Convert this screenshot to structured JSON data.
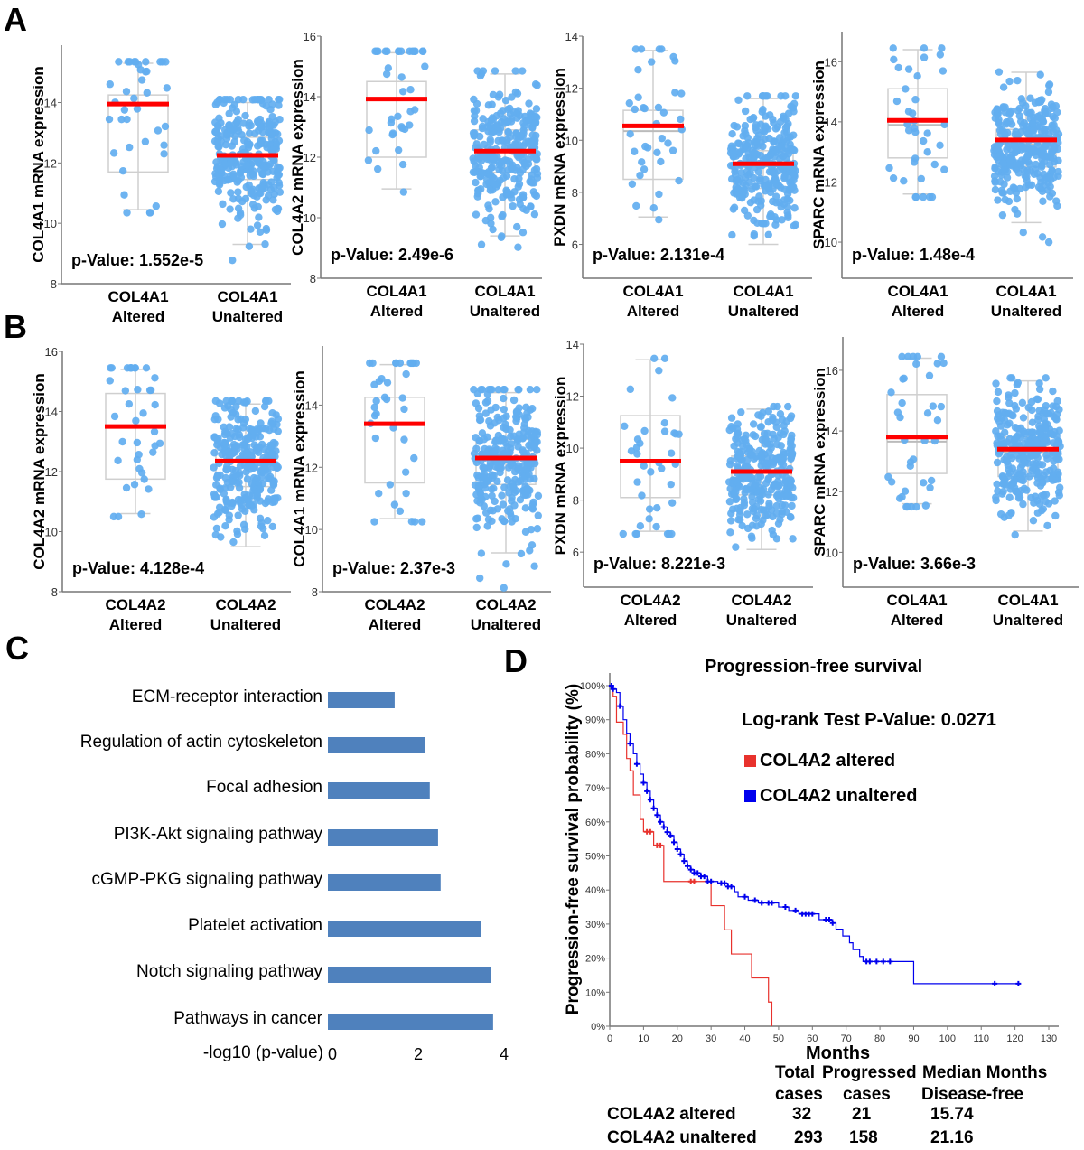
{
  "panels": {
    "a": "A",
    "b": "B",
    "c": "C",
    "d": "D"
  },
  "colors": {
    "points": "#62aef0",
    "mean_line": "#ff0000",
    "box": "#cfcfcf",
    "bar": "#4f81bd",
    "altered": "#e8322d",
    "unaltered": "#0000ee"
  },
  "chart_data": [
    {
      "type": "box",
      "panel": "A",
      "ylabel": "COL4A1 mRNA expression",
      "ylim": [
        8,
        15.9
      ],
      "yticks": [
        8,
        10,
        12,
        14
      ],
      "p_value": "p-Value: 1.552e-5",
      "categories": [
        [
          "COL4A1",
          "Altered"
        ],
        [
          "COL4A1",
          "Unaltered"
        ]
      ],
      "groups": [
        {
          "whisker": [
            10.45,
            15.3
          ],
          "q1": 11.7,
          "median": 13.95,
          "q3": 14.25,
          "mean": 13.95
        },
        {
          "whisker": [
            9.3,
            14.0
          ],
          "q1": 11.45,
          "median": 12.2,
          "q3": 12.85,
          "mean": 12.25
        }
      ]
    },
    {
      "type": "box",
      "panel": "A",
      "ylabel": "COL4A2 mRNA expression",
      "ylim": [
        8,
        16
      ],
      "yticks": [
        8,
        10,
        12,
        14,
        16
      ],
      "p_value": "p-Value: 2.49e-6",
      "categories": [
        [
          "COL4A1",
          "Altered"
        ],
        [
          "COL4A1",
          "Unaltered"
        ]
      ],
      "groups": [
        {
          "whisker": [
            10.95,
            15.45
          ],
          "q1": 12.0,
          "median": 13.9,
          "q3": 14.5,
          "mean": 13.92
        },
        {
          "whisker": [
            9.4,
            14.75
          ],
          "q1": 11.5,
          "median": 12.2,
          "q3": 12.9,
          "mean": 12.2
        }
      ]
    },
    {
      "type": "box",
      "panel": "A",
      "ylabel": "PXDN mRNA expression",
      "ylim": [
        4.7,
        14
      ],
      "yticks": [
        6,
        8,
        10,
        12,
        14
      ],
      "p_value": "p-Value: 2.131e-4",
      "categories": [
        [
          "COL4A1",
          "Altered"
        ],
        [
          "COL4A1",
          "Unaltered"
        ]
      ],
      "groups": [
        {
          "whisker": [
            7.05,
            13.45
          ],
          "q1": 8.5,
          "median": 10.35,
          "q3": 11.15,
          "mean": 10.55
        },
        {
          "whisker": [
            6.0,
            11.6
          ],
          "q1": 8.15,
          "median": 9.0,
          "q3": 9.6,
          "mean": 9.1
        }
      ]
    },
    {
      "type": "box",
      "panel": "A",
      "ylabel": "SPARC mRNA expression",
      "ylim": [
        8.8,
        17
      ],
      "yticks": [
        10,
        12,
        14,
        16
      ],
      "p_value": "p-Value: 1.48e-4",
      "categories": [
        [
          "COL4A1",
          "Altered"
        ],
        [
          "COL4A1",
          "Unaltered"
        ]
      ],
      "groups": [
        {
          "whisker": [
            11.6,
            16.4
          ],
          "q1": 12.8,
          "median": 13.9,
          "q3": 15.1,
          "mean": 14.05
        },
        {
          "whisker": [
            10.65,
            15.65
          ],
          "q1": 12.5,
          "median": 13.25,
          "q3": 13.75,
          "mean": 13.4
        }
      ]
    },
    {
      "type": "box",
      "panel": "B",
      "ylabel": "COL4A2 mRNA expression",
      "ylim": [
        8,
        16
      ],
      "yticks": [
        8,
        10,
        12,
        14,
        16
      ],
      "p_value": "p-Value: 4.128e-4",
      "categories": [
        [
          "COL4A2",
          "Altered"
        ],
        [
          "COL4A2",
          "Unaltered"
        ]
      ],
      "groups": [
        {
          "whisker": [
            10.6,
            15.4
          ],
          "q1": 11.75,
          "median": 13.5,
          "q3": 14.6,
          "mean": 13.5
        },
        {
          "whisker": [
            9.5,
            14.25
          ],
          "q1": 11.5,
          "median": 12.3,
          "q3": 12.9,
          "mean": 12.35
        }
      ]
    },
    {
      "type": "box",
      "panel": "B",
      "ylabel": "COL4A1 mRNA expression",
      "ylim": [
        8,
        15.9
      ],
      "yticks": [
        8,
        10,
        12,
        14
      ],
      "p_value": "p-Value: 2.37e-3",
      "categories": [
        [
          "COL4A2",
          "Altered"
        ],
        [
          "COL4A2",
          "Unaltered"
        ]
      ],
      "groups": [
        {
          "whisker": [
            10.35,
            15.3
          ],
          "q1": 11.5,
          "median": 13.4,
          "q3": 14.25,
          "mean": 13.4
        },
        {
          "whisker": [
            9.25,
            14.4
          ],
          "q1": 11.45,
          "median": 12.25,
          "q3": 12.9,
          "mean": 12.3
        }
      ]
    },
    {
      "type": "box",
      "panel": "B",
      "ylabel": "PXDN mRNA expression",
      "ylim": [
        4.65,
        14
      ],
      "yticks": [
        6,
        8,
        10,
        12,
        14
      ],
      "p_value": "p-Value: 8.221e-3",
      "categories": [
        [
          "COL4A2",
          "Altered"
        ],
        [
          "COL4A2",
          "Unaltered"
        ]
      ],
      "groups": [
        {
          "whisker": [
            6.8,
            13.4
          ],
          "q1": 8.1,
          "median": 9.5,
          "q3": 11.25,
          "mean": 9.5
        },
        {
          "whisker": [
            6.1,
            11.5
          ],
          "q1": 8.2,
          "median": 9.05,
          "q3": 9.7,
          "mean": 9.1
        }
      ]
    },
    {
      "type": "box",
      "panel": "B",
      "ylabel": "SPARC mRNA expression",
      "ylim": [
        8.85,
        17.1
      ],
      "yticks": [
        10,
        12,
        14,
        16
      ],
      "p_value": "p-Value: 3.66e-3",
      "categories": [
        [
          "COL4A1",
          "Altered"
        ],
        [
          "COL4A1",
          "Unaltered"
        ]
      ],
      "groups": [
        {
          "whisker": [
            11.6,
            16.4
          ],
          "q1": 12.6,
          "median": 13.65,
          "q3": 15.2,
          "mean": 13.8
        },
        {
          "whisker": [
            10.7,
            15.65
          ],
          "q1": 12.5,
          "median": 13.3,
          "q3": 13.8,
          "mean": 13.4
        }
      ]
    },
    {
      "type": "bar",
      "panel": "C",
      "orientation": "horizontal",
      "categories": [
        "ECM-receptor interaction",
        "Regulation of actin cytoskeleton",
        "Focal adhesion",
        "PI3K-Akt signaling pathway",
        "cGMP-PKG signaling pathway",
        "Platelet activation",
        "Notch signaling pathway",
        "Pathways in cancer"
      ],
      "values": [
        1.54,
        2.25,
        2.35,
        2.54,
        2.6,
        3.54,
        3.75,
        3.81
      ],
      "xlabel": "-log10 (p-value)",
      "xticks": [
        0,
        2,
        4
      ],
      "xlim": [
        0,
        4
      ]
    },
    {
      "type": "line",
      "panel": "D",
      "subtype": "kaplan-meier",
      "title": "Progression-free survival",
      "annotation": "Log-rank Test P-Value: 0.0271",
      "xlabel": "Months",
      "ylabel": "Progression-free survival probability (%)",
      "xlim": [
        0,
        130
      ],
      "xticks": [
        0,
        10,
        20,
        30,
        40,
        50,
        60,
        70,
        80,
        90,
        100,
        110,
        120,
        130
      ],
      "ylim": [
        0,
        100
      ],
      "yticks": [
        "0%",
        "10%",
        "20%",
        "30%",
        "40%",
        "50%",
        "60%",
        "70%",
        "80%",
        "90%",
        "100%"
      ],
      "legend_position": "top-right",
      "series": [
        {
          "name": "COL4A2 altered",
          "color": "#e8322d",
          "steps": [
            [
              0,
              100
            ],
            [
              1,
              96.9
            ],
            [
              2,
              89.3
            ],
            [
              4,
              85.7
            ],
            [
              5,
              78.6
            ],
            [
              6,
              75
            ],
            [
              7,
              67.9
            ],
            [
              9,
              60.7
            ],
            [
              10,
              57.1
            ],
            [
              13,
              53.1
            ],
            [
              16,
              42.5
            ],
            [
              30,
              35.4
            ],
            [
              34,
              28.3
            ],
            [
              36,
              21.2
            ],
            [
              42,
              14.2
            ],
            [
              47,
              7.1
            ],
            [
              48,
              0
            ]
          ],
          "censored": [
            11,
            12,
            14,
            15,
            24,
            25
          ]
        },
        {
          "name": "COL4A2 unaltered",
          "color": "#0000ee",
          "steps": [
            [
              0,
              100
            ],
            [
              1,
              99
            ],
            [
              2,
              98
            ],
            [
              3,
              94
            ],
            [
              4,
              90
            ],
            [
              5,
              86
            ],
            [
              6,
              83
            ],
            [
              7,
              80
            ],
            [
              8,
              77
            ],
            [
              9,
              74
            ],
            [
              10,
              71.5
            ],
            [
              11,
              69
            ],
            [
              12,
              66.5
            ],
            [
              13,
              64
            ],
            [
              14,
              62
            ],
            [
              15,
              60
            ],
            [
              16,
              58.5
            ],
            [
              17,
              57
            ],
            [
              18,
              56
            ],
            [
              19,
              54
            ],
            [
              20,
              52
            ],
            [
              21,
              50.5
            ],
            [
              22,
              48.5
            ],
            [
              23,
              47
            ],
            [
              24,
              46
            ],
            [
              25,
              45
            ],
            [
              27,
              44
            ],
            [
              29,
              42.5
            ],
            [
              32,
              42
            ],
            [
              35,
              41
            ],
            [
              37,
              39.5
            ],
            [
              38,
              38
            ],
            [
              41,
              37
            ],
            [
              44,
              36.2
            ],
            [
              50,
              35
            ],
            [
              53,
              34
            ],
            [
              56,
              33
            ],
            [
              62,
              31.3
            ],
            [
              66,
              30.3
            ],
            [
              67,
              28.5
            ],
            [
              69,
              26.5
            ],
            [
              71,
              24.5
            ],
            [
              72,
              22.5
            ],
            [
              74,
              20.5
            ],
            [
              75,
              19
            ],
            [
              90,
              12.5
            ],
            [
              121,
              12.5
            ]
          ],
          "censored": [
            0.5,
            1,
            3,
            6,
            8,
            10,
            11,
            12,
            13,
            14,
            15,
            16,
            17,
            18,
            19,
            20,
            21,
            22,
            23,
            24,
            25,
            26,
            27,
            28,
            29,
            30,
            33,
            34,
            35,
            36,
            40,
            43,
            45,
            47,
            48,
            52,
            55,
            57,
            58,
            59,
            60,
            64,
            65,
            66,
            76,
            77,
            79,
            81,
            83,
            114,
            121
          ]
        }
      ],
      "table": {
        "headers": [
          [
            "Total",
            "cases"
          ],
          [
            "Progressed",
            "cases"
          ],
          [
            "Median Months",
            "Disease-free"
          ]
        ],
        "rows": [
          {
            "label": "COL4A2 altered",
            "total": "32",
            "progressed": "21",
            "median": "15.74"
          },
          {
            "label": "COL4A2 unaltered",
            "total": "293",
            "progressed": "158",
            "median": "21.16"
          }
        ]
      }
    }
  ]
}
